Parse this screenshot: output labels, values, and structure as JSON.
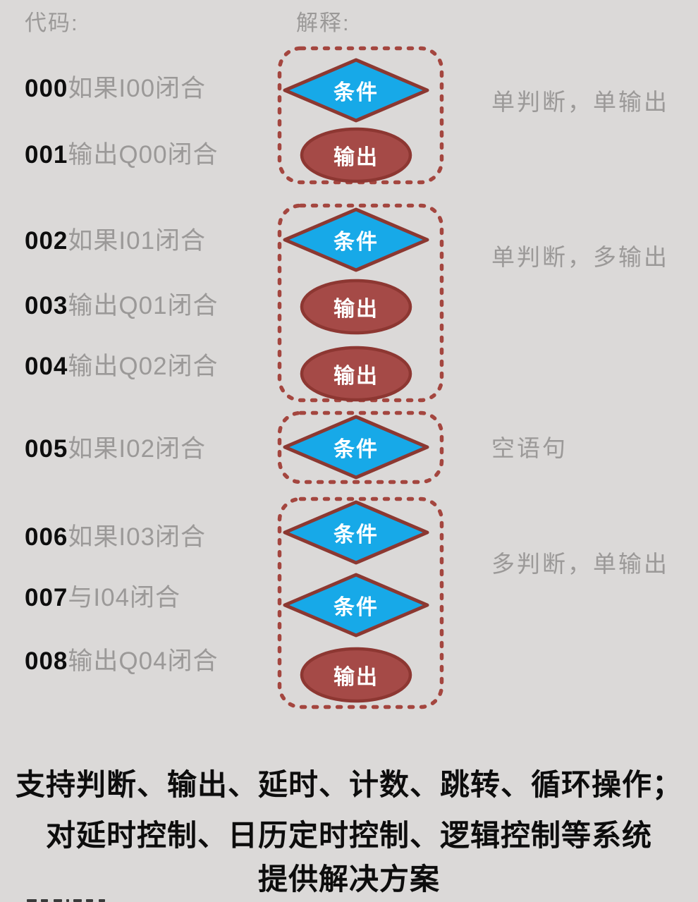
{
  "headers": {
    "code": "代码:",
    "explain": "解释:"
  },
  "code_lines": [
    {
      "num": "000",
      "text": "如果I00闭合"
    },
    {
      "num": "001",
      "text": "输出Q00闭合"
    },
    {
      "num": "002",
      "text": "如果I01闭合"
    },
    {
      "num": "003",
      "text": "输出Q01闭合"
    },
    {
      "num": "004",
      "text": "输出Q02闭合"
    },
    {
      "num": "005",
      "text": "如果I02闭合"
    },
    {
      "num": "006",
      "text": "如果I03闭合"
    },
    {
      "num": "007",
      "text": "与I04闭合"
    },
    {
      "num": "008",
      "text": "输出Q04闭合"
    }
  ],
  "shape_labels": {
    "condition": "条件",
    "output": "输出"
  },
  "groups": [
    {
      "explanation": "单判断，单输出",
      "shapes": [
        "condition",
        "output"
      ]
    },
    {
      "explanation": "单判断，多输出",
      "shapes": [
        "condition",
        "output",
        "output"
      ]
    },
    {
      "explanation": "空语句",
      "shapes": [
        "condition"
      ]
    },
    {
      "explanation": "多判断，单输出",
      "shapes": [
        "condition",
        "condition",
        "output"
      ]
    }
  ],
  "footer": {
    "lines": [
      "支持判断、输出、延时、计数、跳转、循环操作；",
      "对延时控制、日历定时控制、逻辑控制等系统",
      "提供解决方案"
    ]
  },
  "colors": {
    "background": "#DBD9D8",
    "gray_text": "#9B9998",
    "black_text": "#0D0D0D",
    "diamond_fill": "#17A9E8",
    "diamond_stroke": "#8C3831",
    "ellipse_fill": "#A54A47",
    "ellipse_stroke": "#8D3732",
    "dashed_border": "#A4463F",
    "shape_text": "#FFFFFF"
  }
}
